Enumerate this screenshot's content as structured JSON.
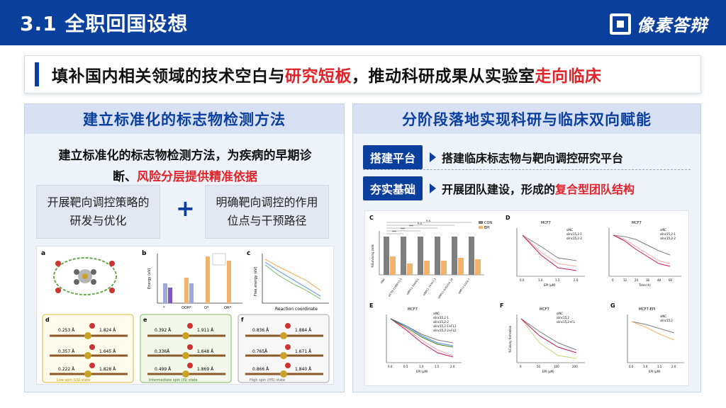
{
  "header": {
    "title": "3.1 全职回国设想",
    "logo_text": "像素答辩"
  },
  "banner": {
    "part1": "填补国内相关领域的技术空白与",
    "hl1": "研究短板",
    "part2": "，推动科研成果从实验室",
    "hl2": "走向临床"
  },
  "left_panel": {
    "title": "建立标准化的标志物检测方法",
    "desc_line1": "建立标准化的标志物检测方法，为疾病的早期诊",
    "desc_line2a": "断、",
    "desc_line2_hl": "风险分层提供精准依据",
    "card_a_line1": "开展靶向调控策略的",
    "card_a_line2": "研发与优化",
    "plus": "+",
    "card_b_line1": "明确靶向调控的作用",
    "card_b_line2": "位点与干预路径",
    "figure": {
      "labels": [
        "a",
        "b",
        "c",
        "d",
        "e",
        "f"
      ],
      "d_values": [
        "0.253 Å",
        "1.824 Å",
        "0.357 Å",
        "1.645 Å",
        "0.222 Å",
        "1.828 Å"
      ],
      "e_values": [
        "0.392 Å",
        "1.911 Å",
        "0.336Å",
        "1.648 Å",
        "0.499 Å",
        "1.869 Å"
      ],
      "f_values": [
        "0.836 Å",
        "1.884 Å",
        "0.765Å",
        "1.671 Å",
        "0.866 Å",
        "1.840 Å"
      ],
      "b_ylabel": "Energy (eV)",
      "b_xticks": [
        "*",
        "OOH*",
        "O*",
        "OH*"
      ],
      "c_xlabel": "Reaction coordinate",
      "c_ylabel": "Free energy (eV)",
      "d_caption": "Low spin (LS) state",
      "e_caption": "Intermediate spin (IS) state",
      "f_caption": "High spin (HS) state"
    }
  },
  "right_panel": {
    "title": "分阶段落地实现科研与临床双向赋能",
    "tag1": "搭建平台",
    "text1": "搭建临床标志物与靶向调控研究平台",
    "tag2": "夯实基础",
    "text2a": "开展团队建设，形成的",
    "text2_hl": "复合型团队结构",
    "figure": {
      "panel_labels": [
        "C",
        "D",
        "E",
        "F",
        "G"
      ],
      "titles": [
        "MCF7",
        "MCF7",
        "MCF7",
        "MCF7",
        "MCF7-EPI"
      ],
      "c_legend": [
        "CON",
        "EPI"
      ],
      "c_ylabel": "%Surviving cells",
      "c_xticks": [
        "siNC",
        "siCTD-2299F15.5",
        "siRP11-544A11",
        "siRP11-747H7.3",
        "siRP11-4250/10.16",
        "siRP11-1020.7"
      ],
      "c_sig": [
        "n.s.",
        "n.s.",
        "***",
        "***",
        "***"
      ],
      "d_legend": [
        "siNC",
        "silnc15,2-1",
        "silnc15,2-2"
      ],
      "d_xticks": [
        "0.0",
        "1.0",
        "1.5",
        "2.0"
      ],
      "d_xlabel": "EPI (μM)",
      "d2_xticks": [
        "0",
        "12",
        "24",
        "36",
        "48",
        "60"
      ],
      "d2_xlabel": "Time (h)",
      "e_legend": [
        "siNC",
        "silnc15,2-1",
        "silnc15,2-2",
        "silnc15,2-1+FL1",
        "silnc15,2-2+FL2"
      ],
      "e_xticks": [
        "0.0",
        "0.5",
        "1.0",
        "1.5",
        "2.0"
      ],
      "f_legend": [
        "siNC",
        "silnc15,2",
        "silnc15,2+FL"
      ],
      "f_xticks": [
        "0",
        "50",
        "100",
        "200"
      ],
      "f_ylabel": "%Colony formation",
      "g_legend": [
        "siNC",
        "silnc15,2"
      ],
      "g_xticks": [
        "0.0",
        "1.0",
        "1.5",
        "2.0"
      ],
      "xlabel_epi": "EPI (μM)"
    }
  }
}
